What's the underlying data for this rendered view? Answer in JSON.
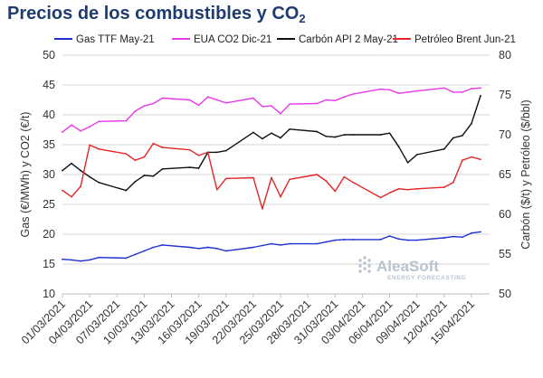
{
  "title": {
    "main": "Precios de los combustibles y CO",
    "subscript": "2"
  },
  "watermark": {
    "name": "AleaSoft",
    "tagline": "ENERGY FORECASTING"
  },
  "chart_data": {
    "type": "line",
    "xlabel": "",
    "ylabel": "Gas (€/MWh) y CO2 (€/t)",
    "ylabel_right": "Carbón ($/t) y Petróleo ($/bbl)",
    "ylim": [
      10,
      50
    ],
    "ylim_right": [
      50,
      80
    ],
    "yticks": [
      10,
      15,
      20,
      25,
      30,
      35,
      40,
      45,
      50
    ],
    "yticks_right": [
      50,
      55,
      60,
      65,
      70,
      75,
      80
    ],
    "grid": "horizontal",
    "legend_position": "top",
    "x_start": "2021-03-01",
    "x_end": "2021-04-17",
    "x_tick_labels": [
      "01/03/2021",
      "04/03/2021",
      "07/03/2021",
      "10/03/2021",
      "13/03/2021",
      "16/03/2021",
      "19/03/2021",
      "22/03/2021",
      "25/03/2021",
      "28/03/2021",
      "31/03/2021",
      "03/04/2021",
      "06/04/2021",
      "09/04/2021",
      "12/04/2021",
      "15/04/2021"
    ],
    "series": [
      {
        "name": "Gas TTF May-21",
        "axis": "left",
        "color": "#1f2fd0",
        "dates": [
          "2021-03-01",
          "2021-03-02",
          "2021-03-03",
          "2021-03-04",
          "2021-03-05",
          "2021-03-08",
          "2021-03-09",
          "2021-03-10",
          "2021-03-11",
          "2021-03-12",
          "2021-03-15",
          "2021-03-16",
          "2021-03-17",
          "2021-03-18",
          "2021-03-19",
          "2021-03-22",
          "2021-03-23",
          "2021-03-24",
          "2021-03-25",
          "2021-03-26",
          "2021-03-29",
          "2021-03-30",
          "2021-03-31",
          "2021-04-01",
          "2021-04-02",
          "2021-04-05",
          "2021-04-06",
          "2021-04-07",
          "2021-04-08",
          "2021-04-09",
          "2021-04-12",
          "2021-04-13",
          "2021-04-14",
          "2021-04-15",
          "2021-04-16"
        ],
        "values": [
          15.8,
          15.7,
          15.5,
          15.7,
          16.1,
          16.0,
          16.6,
          17.2,
          17.8,
          18.2,
          17.8,
          17.6,
          17.8,
          17.6,
          17.2,
          17.8,
          18.1,
          18.4,
          18.2,
          18.4,
          18.4,
          18.7,
          19.0,
          19.1,
          19.1,
          19.1,
          19.7,
          19.2,
          19.0,
          19.0,
          19.4,
          19.6,
          19.5,
          20.2,
          20.4
        ]
      },
      {
        "name": "EUA CO2 Dic-21",
        "axis": "left",
        "color": "#e83ae8",
        "dates": [
          "2021-03-01",
          "2021-03-02",
          "2021-03-03",
          "2021-03-04",
          "2021-03-05",
          "2021-03-08",
          "2021-03-09",
          "2021-03-10",
          "2021-03-11",
          "2021-03-12",
          "2021-03-15",
          "2021-03-16",
          "2021-03-17",
          "2021-03-18",
          "2021-03-19",
          "2021-03-22",
          "2021-03-23",
          "2021-03-24",
          "2021-03-25",
          "2021-03-26",
          "2021-03-29",
          "2021-03-30",
          "2021-03-31",
          "2021-04-01",
          "2021-04-02",
          "2021-04-05",
          "2021-04-06",
          "2021-04-07",
          "2021-04-08",
          "2021-04-09",
          "2021-04-12",
          "2021-04-13",
          "2021-04-14",
          "2021-04-15",
          "2021-04-16"
        ],
        "values": [
          37.1,
          38.3,
          37.3,
          38.0,
          38.9,
          39.0,
          40.6,
          41.5,
          41.9,
          42.8,
          42.5,
          41.6,
          43.0,
          42.5,
          42.0,
          42.8,
          41.4,
          41.5,
          40.2,
          41.8,
          41.9,
          42.5,
          42.4,
          43.0,
          43.5,
          44.3,
          44.2,
          43.6,
          43.8,
          44.0,
          44.5,
          43.8,
          43.8,
          44.4,
          44.5
        ]
      },
      {
        "name": "Carbón API 2 May-21",
        "axis": "right",
        "color": "#111111",
        "dates": [
          "2021-03-01",
          "2021-03-02",
          "2021-03-03",
          "2021-03-04",
          "2021-03-05",
          "2021-03-08",
          "2021-03-09",
          "2021-03-10",
          "2021-03-11",
          "2021-03-12",
          "2021-03-15",
          "2021-03-16",
          "2021-03-17",
          "2021-03-18",
          "2021-03-19",
          "2021-03-22",
          "2021-03-23",
          "2021-03-24",
          "2021-03-25",
          "2021-03-26",
          "2021-03-29",
          "2021-03-30",
          "2021-03-31",
          "2021-04-01",
          "2021-04-02",
          "2021-04-05",
          "2021-04-06",
          "2021-04-07",
          "2021-04-08",
          "2021-04-09",
          "2021-04-12",
          "2021-04-13",
          "2021-04-14",
          "2021-04-15",
          "2021-04-16"
        ],
        "values": [
          65.5,
          66.4,
          65.5,
          64.7,
          64.0,
          63.0,
          64.1,
          64.9,
          64.8,
          65.7,
          65.9,
          65.8,
          67.8,
          67.8,
          68.0,
          70.3,
          69.5,
          70.2,
          69.6,
          70.7,
          70.4,
          69.8,
          69.7,
          70.0,
          70.0,
          70.0,
          70.2,
          68.5,
          66.5,
          67.5,
          68.2,
          69.6,
          69.9,
          71.4,
          74.9
        ]
      },
      {
        "name": "Petróleo Brent Jun-21",
        "axis": "right",
        "color": "#e32626",
        "dates": [
          "2021-03-01",
          "2021-03-02",
          "2021-03-03",
          "2021-03-04",
          "2021-03-05",
          "2021-03-08",
          "2021-03-09",
          "2021-03-10",
          "2021-03-11",
          "2021-03-12",
          "2021-03-15",
          "2021-03-16",
          "2021-03-17",
          "2021-03-18",
          "2021-03-19",
          "2021-03-22",
          "2021-03-23",
          "2021-03-24",
          "2021-03-25",
          "2021-03-26",
          "2021-03-29",
          "2021-03-30",
          "2021-03-31",
          "2021-04-01",
          "2021-04-02",
          "2021-04-05",
          "2021-04-06",
          "2021-04-07",
          "2021-04-08",
          "2021-04-09",
          "2021-04-12",
          "2021-04-13",
          "2021-04-14",
          "2021-04-15",
          "2021-04-16"
        ],
        "values": [
          63.0,
          62.2,
          63.5,
          68.7,
          68.2,
          67.6,
          66.8,
          67.2,
          68.9,
          68.4,
          68.1,
          67.4,
          67.8,
          63.1,
          64.5,
          64.6,
          60.7,
          64.6,
          62.2,
          64.4,
          65.0,
          64.2,
          62.9,
          64.7,
          64.0,
          62.1,
          62.7,
          63.2,
          63.1,
          63.2,
          63.4,
          64.0,
          66.8,
          67.2,
          66.9
        ]
      }
    ]
  }
}
